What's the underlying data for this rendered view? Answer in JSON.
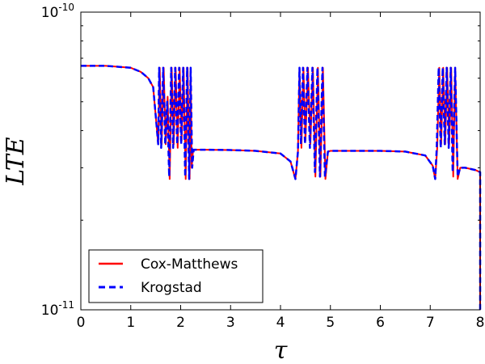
{
  "chart_data": {
    "type": "line",
    "title": "",
    "xlabel": "τ",
    "ylabel": "LTE",
    "xlim": [
      0,
      8
    ],
    "ylim": [
      1e-11,
      1e-10
    ],
    "yscale": "log",
    "grid": false,
    "legend_location": "lower-left",
    "x_ticks": [
      "0",
      "1",
      "2",
      "3",
      "4",
      "5",
      "6",
      "7",
      "8"
    ],
    "y_tick_base": "10",
    "y_ticks": [
      {
        "value": 1e-11,
        "exponent": "-11"
      },
      {
        "value": 1e-10,
        "exponent": "-10"
      }
    ],
    "series": [
      {
        "name": "Cox-Matthews",
        "color": "#ff0000",
        "linestyle": "solid",
        "x": [
          0,
          0.5,
          1.0,
          1.2,
          1.35,
          1.45,
          1.5,
          1.55,
          1.58,
          1.62,
          1.66,
          1.7,
          1.74,
          1.78,
          1.82,
          1.86,
          1.9,
          1.94,
          1.98,
          2.02,
          2.06,
          2.1,
          2.14,
          2.18,
          2.2,
          2.22,
          2.25,
          2.3,
          2.5,
          3.0,
          3.5,
          4.0,
          4.2,
          4.3,
          4.35,
          4.38,
          4.42,
          4.46,
          4.5,
          4.55,
          4.6,
          4.65,
          4.7,
          4.75,
          4.8,
          4.85,
          4.9,
          4.95,
          5.0,
          5.5,
          6.0,
          6.5,
          6.9,
          7.05,
          7.1,
          7.14,
          7.18,
          7.22,
          7.26,
          7.3,
          7.34,
          7.38,
          7.42,
          7.46,
          7.5,
          7.55,
          7.6,
          7.7,
          7.9,
          8.0,
          8.0
        ],
        "y": [
          6.6e-11,
          6.6e-11,
          6.5e-11,
          6.3e-11,
          6e-11,
          5.6e-11,
          4.5e-11,
          3.6e-11,
          6.5e-11,
          3.6e-11,
          6.5e-11,
          3.6e-11,
          5.2e-11,
          2.75e-11,
          6.5e-11,
          3.6e-11,
          6.5e-11,
          3.5e-11,
          6.5e-11,
          3.7e-11,
          6.5e-11,
          2.75e-11,
          6.5e-11,
          2.75e-11,
          6.5e-11,
          3e-11,
          3.45e-11,
          3.45e-11,
          3.45e-11,
          3.44e-11,
          3.42e-11,
          3.35e-11,
          3.15e-11,
          2.75e-11,
          3.4e-11,
          6.5e-11,
          3.5e-11,
          6.5e-11,
          3.7e-11,
          6.5e-11,
          3.6e-11,
          6.5e-11,
          2.8e-11,
          6.5e-11,
          2.8e-11,
          6.5e-11,
          2.75e-11,
          3.4e-11,
          3.42e-11,
          3.42e-11,
          3.42e-11,
          3.4e-11,
          3.3e-11,
          3.05e-11,
          2.75e-11,
          3.5e-11,
          6.5e-11,
          3.6e-11,
          6.5e-11,
          3.6e-11,
          6.5e-11,
          3.6e-11,
          6.5e-11,
          2.8e-11,
          6.5e-11,
          2.75e-11,
          3e-11,
          3e-11,
          2.95e-11,
          2.9e-11,
          1e-11
        ]
      },
      {
        "name": "Krogstad",
        "color": "#0000ff",
        "linestyle": "dashed",
        "x": [
          0,
          0.5,
          1.0,
          1.2,
          1.35,
          1.45,
          1.5,
          1.55,
          1.57,
          1.61,
          1.65,
          1.69,
          1.73,
          1.77,
          1.81,
          1.85,
          1.89,
          1.93,
          1.97,
          2.01,
          2.05,
          2.09,
          2.13,
          2.17,
          2.2,
          2.23,
          2.26,
          2.3,
          2.5,
          3.0,
          3.5,
          4.0,
          4.2,
          4.3,
          4.35,
          4.38,
          4.41,
          4.45,
          4.49,
          4.54,
          4.59,
          4.64,
          4.69,
          4.74,
          4.79,
          4.84,
          4.89,
          4.95,
          5.0,
          5.5,
          6.0,
          6.5,
          6.9,
          7.05,
          7.1,
          7.13,
          7.17,
          7.21,
          7.25,
          7.29,
          7.33,
          7.37,
          7.41,
          7.45,
          7.5,
          7.55,
          7.6,
          7.7,
          7.9,
          8.0,
          8.0
        ],
        "y": [
          6.6e-11,
          6.6e-11,
          6.5e-11,
          6.3e-11,
          6e-11,
          5.6e-11,
          4.5e-11,
          3.6e-11,
          6.5e-11,
          3.5e-11,
          6.5e-11,
          3.6e-11,
          5e-11,
          2.8e-11,
          6.5e-11,
          3.5e-11,
          6.5e-11,
          3.6e-11,
          6.5e-11,
          3.6e-11,
          6.5e-11,
          2.8e-11,
          6.5e-11,
          2.75e-11,
          6.5e-11,
          3e-11,
          3.45e-11,
          3.45e-11,
          3.45e-11,
          3.44e-11,
          3.42e-11,
          3.35e-11,
          3.15e-11,
          2.75e-11,
          3.4e-11,
          6.5e-11,
          3.6e-11,
          6.5e-11,
          3.6e-11,
          6.5e-11,
          3.5e-11,
          6.5e-11,
          2.9e-11,
          6.5e-11,
          2.8e-11,
          6.5e-11,
          2.8e-11,
          3.4e-11,
          3.42e-11,
          3.42e-11,
          3.42e-11,
          3.4e-11,
          3.3e-11,
          3.05e-11,
          2.75e-11,
          3.5e-11,
          6.5e-11,
          3.5e-11,
          6.5e-11,
          3.6e-11,
          6.5e-11,
          3.5e-11,
          6.5e-11,
          2.9e-11,
          6.5e-11,
          2.8e-11,
          3e-11,
          3e-11,
          2.95e-11,
          2.9e-11,
          1e-11
        ]
      }
    ]
  }
}
